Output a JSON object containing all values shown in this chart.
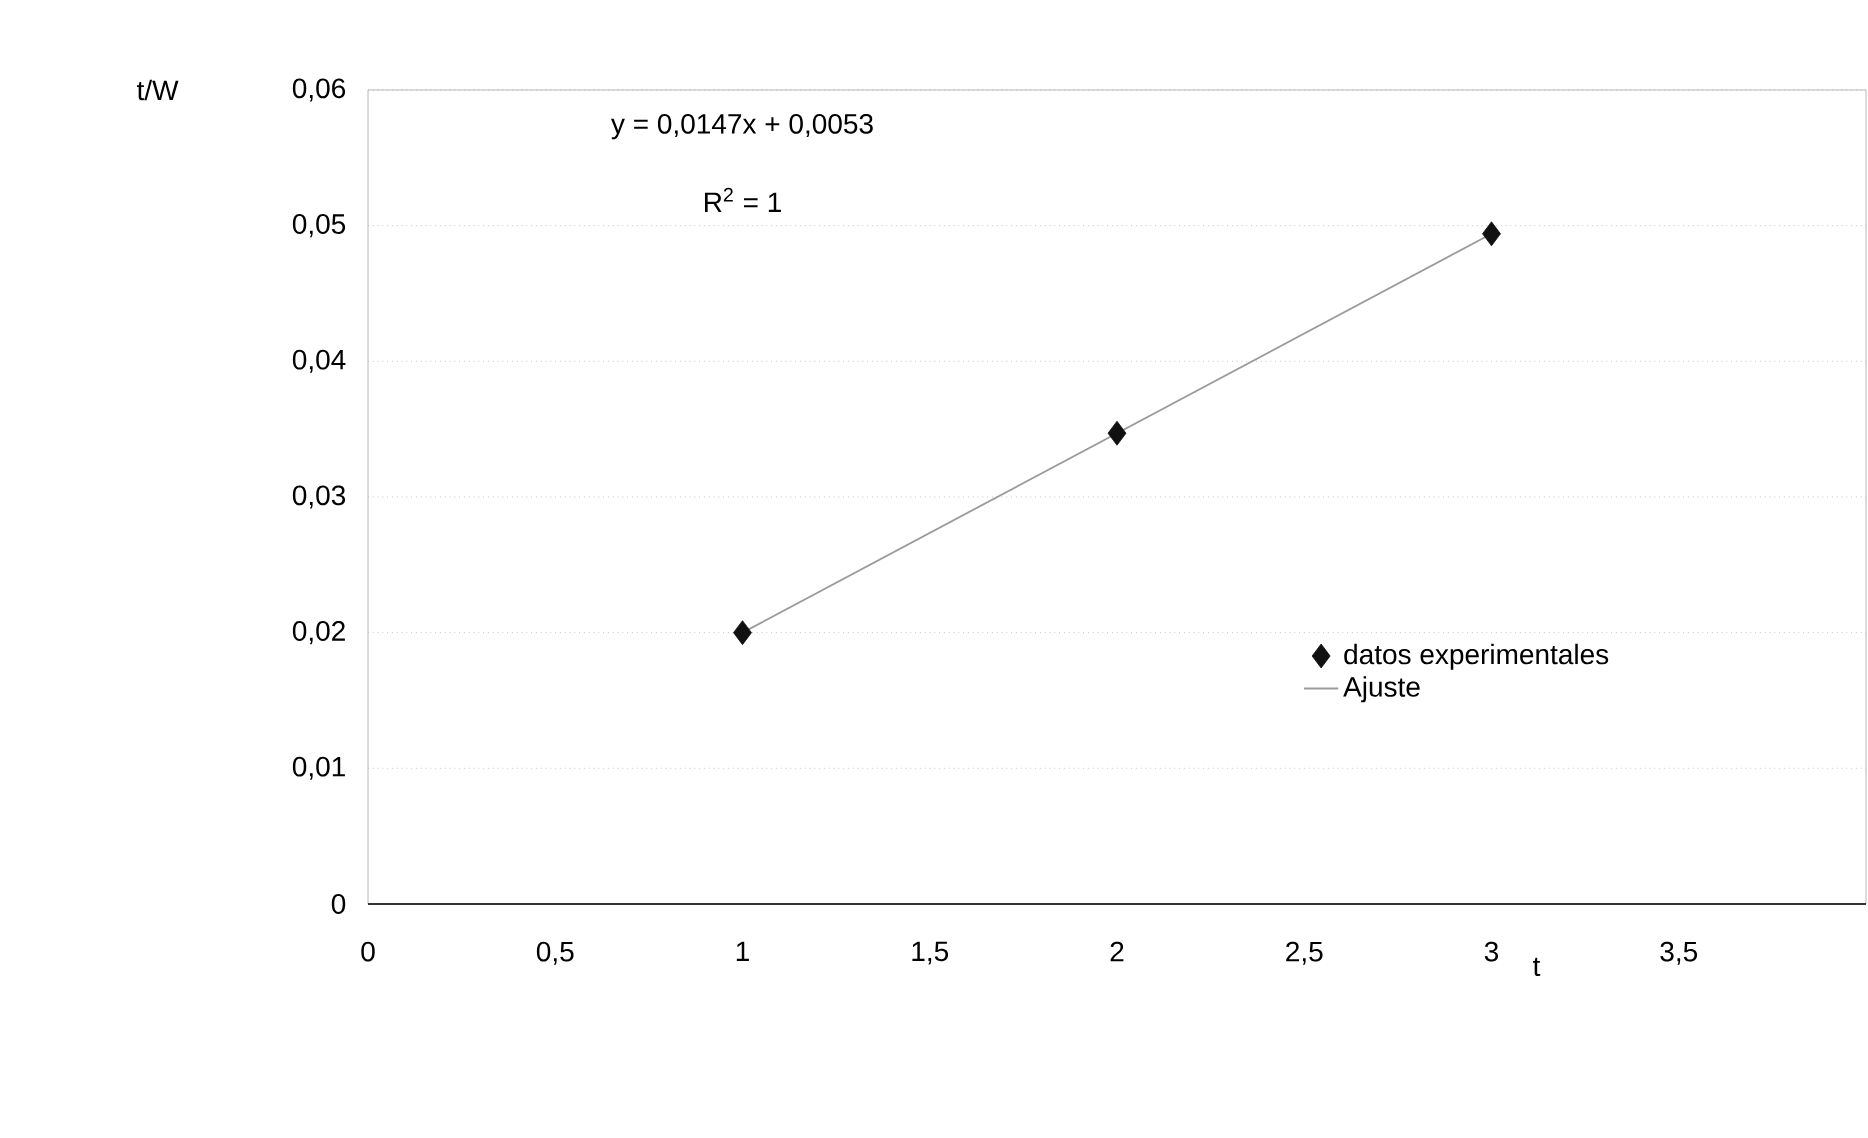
{
  "chart_data": {
    "type": "scatter",
    "ylabel": "t/W",
    "xlabel": "t",
    "annotations": [
      "y = 0,0147x + 0,0053",
      "R$^{2}$ = 1"
    ],
    "series": [
      {
        "name": "datos experimentales",
        "color": "#111111",
        "marker": "diamond",
        "x": [
          1,
          2,
          3
        ],
        "values": [
          0.02,
          0.0347,
          0.0494
        ]
      },
      {
        "name": "Ajuste",
        "type": "line",
        "color": "#9a9a9a",
        "line_style": "solid",
        "x": [
          1,
          3
        ],
        "values": [
          0.02,
          0.0494
        ]
      }
    ],
    "xlim": [
      0,
      4
    ],
    "xticks": [
      0,
      {
        "value": 0.5,
        "label": "0,5"
      },
      1,
      {
        "value": 1.5,
        "label": "1,5"
      },
      2,
      {
        "value": 2.5,
        "label": "2,5"
      },
      3,
      {
        "value": 3.5,
        "label": "3,5"
      }
    ],
    "ylim": [
      0,
      0.06
    ],
    "yticks": [
      0,
      {
        "value": 0.01,
        "label": "0,01"
      },
      {
        "value": 0.02,
        "label": "0,02"
      },
      {
        "value": 0.03,
        "label": "0,03"
      },
      {
        "value": 0.04,
        "label": "0,04"
      },
      {
        "value": 0.05,
        "label": "0,05"
      },
      {
        "value": 0.06,
        "label": "0,06"
      }
    ],
    "grid": "y",
    "legend": "right"
  }
}
